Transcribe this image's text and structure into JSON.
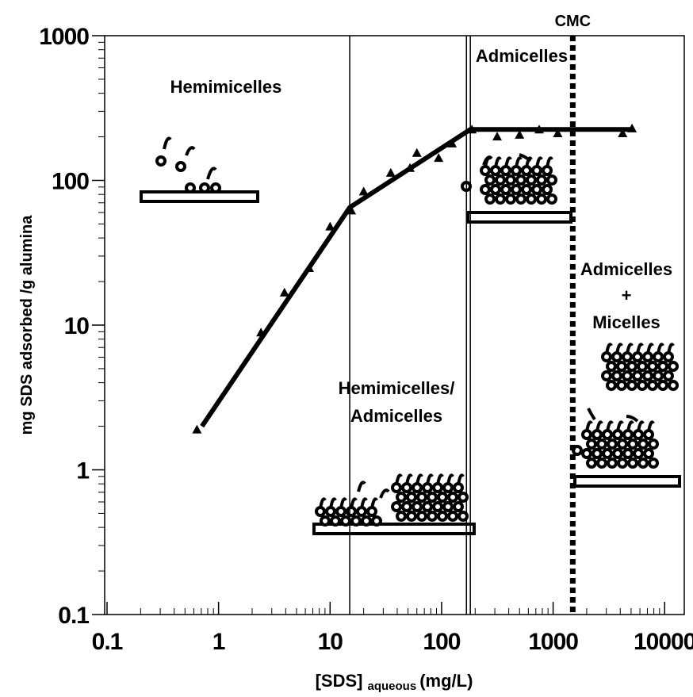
{
  "chart_data": {
    "type": "scatter",
    "xscale": "log",
    "yscale": "log",
    "xlim": [
      0.1,
      15000
    ],
    "ylim": [
      0.1,
      1000
    ],
    "xticks": [
      0.1,
      1,
      10,
      100,
      1000,
      10000
    ],
    "yticks": [
      0.1,
      1,
      10,
      100,
      1000
    ],
    "x_label": [
      "[SDS]",
      "aqueous",
      "(mg/L)"
    ],
    "y_label": "mg SDS adsorbed /g alumina",
    "color": "#000000",
    "series": [
      {
        "marker": "triangle",
        "x": [
          0.64,
          2.4,
          3.9,
          6.5,
          10,
          15.5,
          20,
          35,
          52,
          60,
          94,
          124,
          187,
          315,
          500,
          750,
          1100,
          4200,
          5100
        ],
        "values": [
          1.9,
          8.9,
          16.8,
          24.8,
          48,
          62,
          84,
          113,
          122,
          155,
          143,
          180,
          225,
          201,
          207,
          225,
          212,
          212,
          229
        ]
      },
      {
        "marker": "line",
        "x": [
          0.71,
          15,
          181,
          4900
        ],
        "values": [
          2.0,
          65,
          225,
          225
        ]
      }
    ],
    "reference_lines": [
      {
        "x": 15,
        "style": "solid"
      },
      {
        "x": 167,
        "style": "solid"
      },
      {
        "x": 181,
        "style": "solid"
      },
      {
        "x": 1500,
        "style": "dotted",
        "label": "CMC"
      }
    ],
    "annotations": [
      "Hemimicelles",
      "Admicelles",
      "Hemimicelles/",
      "Admicelles",
      "Admicelles",
      "+",
      "Micelles"
    ]
  }
}
